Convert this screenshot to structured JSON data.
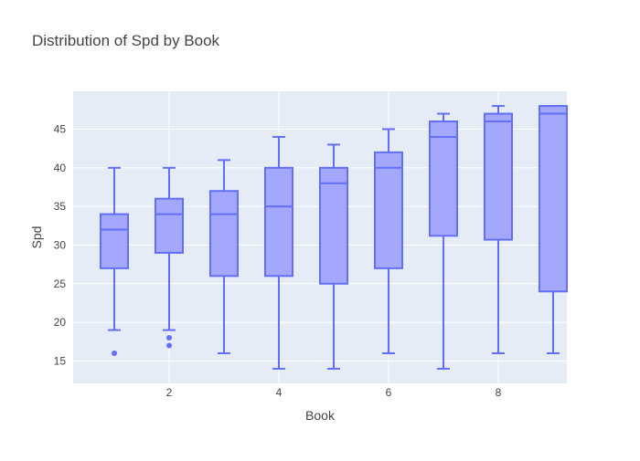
{
  "chart_data": {
    "type": "box",
    "title": "Distribution of Spd by Book",
    "xlabel": "Book",
    "ylabel": "Spd",
    "xlim": [
      0.25,
      9.25
    ],
    "ylim": [
      12.1,
      49.9
    ],
    "x_ticks": [
      2,
      4,
      6,
      8
    ],
    "y_ticks": [
      15,
      20,
      25,
      30,
      35,
      40,
      45
    ],
    "grid": true,
    "colors": {
      "box_line": "#636efa",
      "box_fill": "#a3a8fc",
      "plot_bg": "#e5ecf6",
      "grid": "#ffffff",
      "text": "#444444",
      "title": "#444444"
    },
    "boxes": [
      {
        "x": 1,
        "min": 19,
        "q1": 27,
        "median": 32,
        "q3": 34,
        "max": 40,
        "outliers": [
          16
        ]
      },
      {
        "x": 2,
        "min": 19,
        "q1": 29,
        "median": 34,
        "q3": 36,
        "max": 40,
        "outliers": [
          18,
          17
        ]
      },
      {
        "x": 3,
        "min": 16,
        "q1": 26,
        "median": 34,
        "q3": 37,
        "max": 41,
        "outliers": []
      },
      {
        "x": 4,
        "min": 14,
        "q1": 26,
        "median": 35,
        "q3": 40,
        "max": 44,
        "outliers": []
      },
      {
        "x": 5,
        "min": 14,
        "q1": 25,
        "median": 38,
        "q3": 40,
        "max": 43,
        "outliers": []
      },
      {
        "x": 6,
        "min": 16,
        "q1": 27,
        "median": 40,
        "q3": 42,
        "max": 45,
        "outliers": []
      },
      {
        "x": 7,
        "min": 14,
        "q1": 31.2,
        "median": 44,
        "q3": 46,
        "max": 47,
        "outliers": []
      },
      {
        "x": 8,
        "min": 16,
        "q1": 30.7,
        "median": 46,
        "q3": 47,
        "max": 48,
        "outliers": []
      },
      {
        "x": 9,
        "min": 16,
        "q1": 24,
        "median": 47,
        "q3": 48,
        "max": 48,
        "outliers": []
      }
    ]
  }
}
